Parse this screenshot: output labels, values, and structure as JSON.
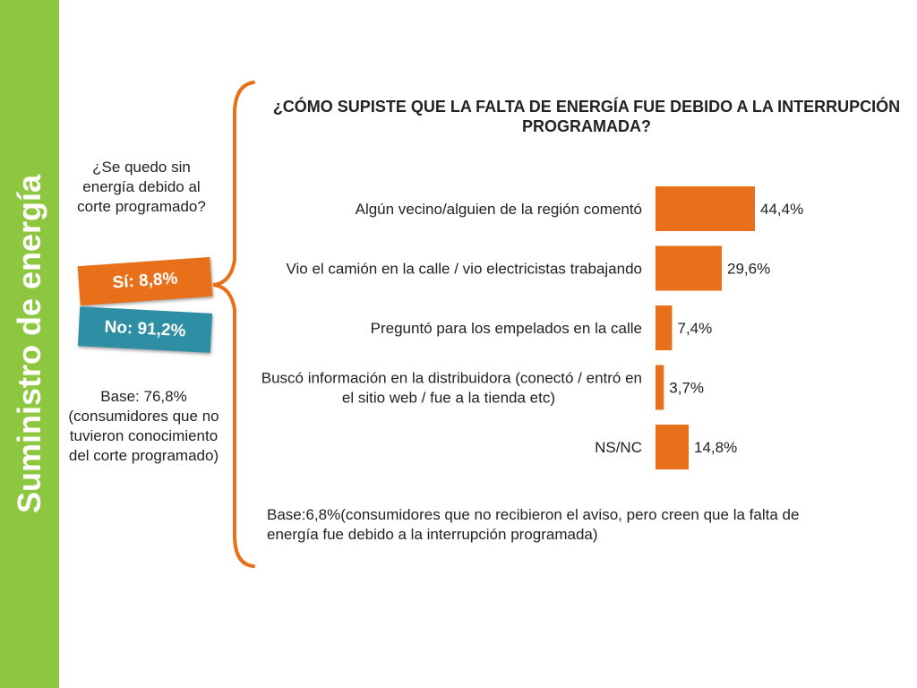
{
  "sidebar": {
    "title": "Suministro de energía"
  },
  "left": {
    "question": "¿Se quedo sin energía debido al corte programado?",
    "yes_label": "Sí: 8,8%",
    "no_label": "No: 91,2%",
    "base": "Base: 76,8%(consumidores que  no tuvieron conocimiento del corte programado)"
  },
  "colors": {
    "accent": "#e8701a",
    "teal": "#2e8ea4",
    "sidebar": "#8dc63f"
  },
  "chart_data": {
    "type": "bar",
    "orientation": "horizontal",
    "title": "¿CÓMO SUPISTE QUE LA FALTA DE ENERGÍA FUE DEBIDO A LA INTERRUPCIÓN PROGRAMADA?",
    "categories": [
      [
        "Algún vecino/alguien de la región comentó"
      ],
      [
        "Vio el camión en la calle / vio electricistas trabajando"
      ],
      [
        "Preguntó para los empelados en la calle"
      ],
      [
        "Buscó información en la distribuidora (conectó / entró en",
        "el sitio web / fue a la tienda etc)"
      ],
      [
        "NS/NC"
      ]
    ],
    "values": [
      44.4,
      29.6,
      7.4,
      3.7,
      14.8
    ],
    "value_labels": [
      "44,4%",
      "29,6%",
      "7,4%",
      "3,7%",
      "14,8%"
    ],
    "color": "#e8701a",
    "base_note": "Base:6,8%(consumidores que no recibieron el aviso, pero creen que la falta de energía fue debido a la interrupción programada)"
  }
}
